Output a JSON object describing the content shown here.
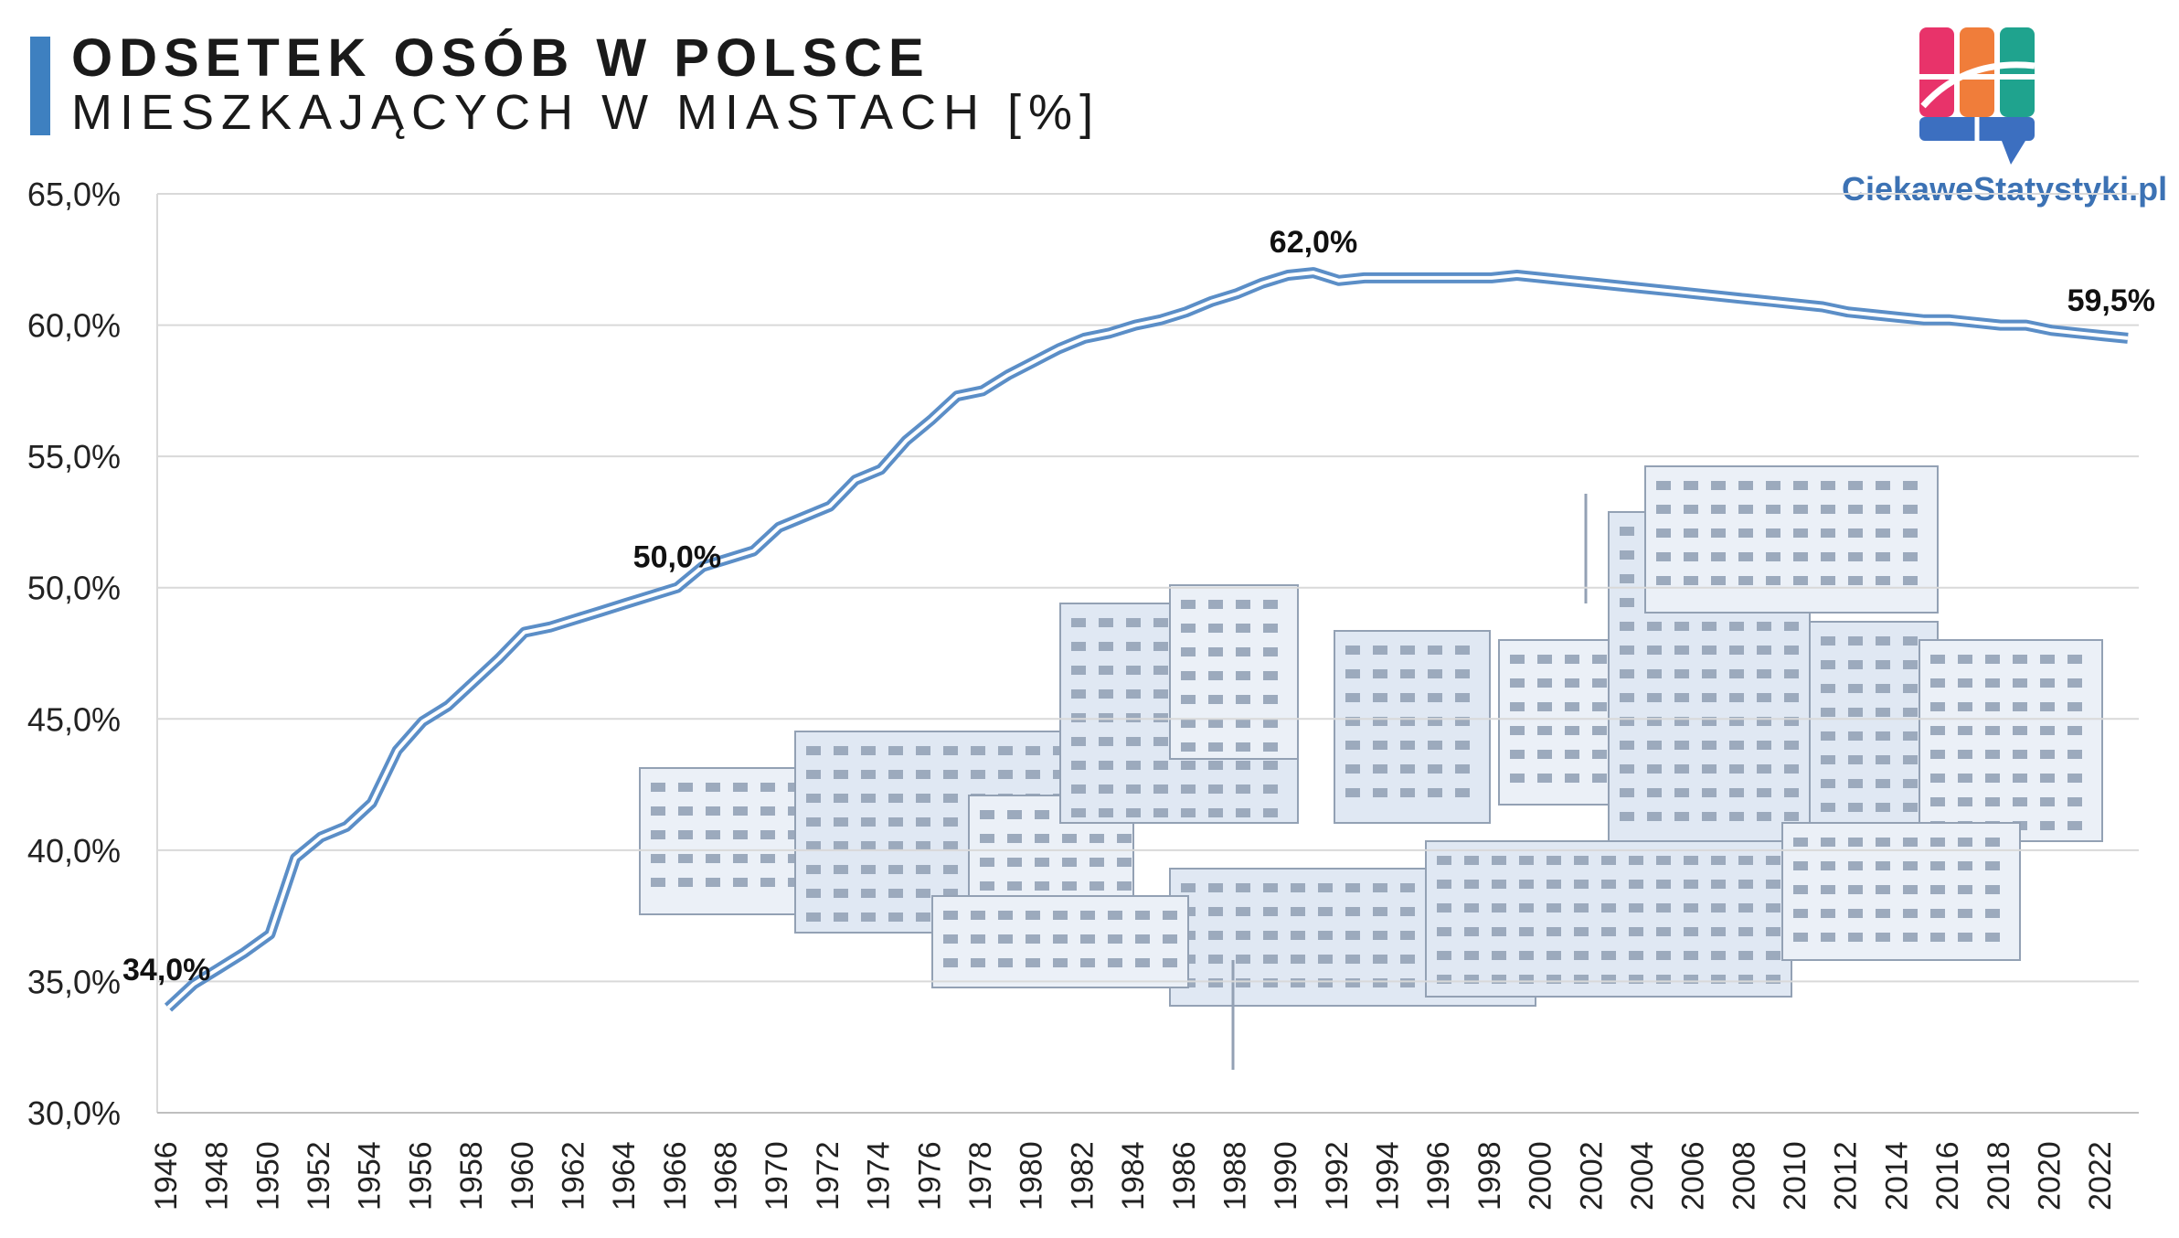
{
  "header": {
    "title_line1": "ODSETEK OSÓB W POLSCE",
    "title_line2": "MIESZKAJĄCYCH W MIASTACH [%]",
    "accent_color": "#3e80c0"
  },
  "brand": {
    "name": "CiekaweStatystyki.pl",
    "logo_colors": [
      "#e8336a",
      "#f07d3a",
      "#1fa38e",
      "#3c6fc0"
    ]
  },
  "chart_data": {
    "type": "line",
    "title": "ODSETEK OSÓB W POLSCE MIESZKAJĄCYCH W MIASTACH [%]",
    "xlabel": "",
    "ylabel": "",
    "ylim": [
      30,
      65
    ],
    "yticks": [
      30,
      35,
      40,
      45,
      50,
      55,
      60,
      65
    ],
    "ytick_labels": [
      "30,0%",
      "35,0%",
      "40,0%",
      "45,0%",
      "50,0%",
      "55,0%",
      "60,0%",
      "65,0%"
    ],
    "xlim": [
      1946,
      2023
    ],
    "xticks": [
      1946,
      1948,
      1950,
      1952,
      1954,
      1956,
      1958,
      1960,
      1962,
      1964,
      1966,
      1968,
      1970,
      1972,
      1974,
      1976,
      1978,
      1980,
      1982,
      1984,
      1986,
      1988,
      1990,
      1992,
      1994,
      1996,
      1998,
      2000,
      2002,
      2004,
      2006,
      2008,
      2010,
      2012,
      2014,
      2016,
      2018,
      2020,
      2022
    ],
    "grid": true,
    "line_color": "#5b8ec7",
    "background_illustration": "city-sketch",
    "series": [
      {
        "x": [
          1946,
          1947,
          1948,
          1949,
          1950,
          1951,
          1952,
          1953,
          1954,
          1955,
          1956,
          1957,
          1958,
          1959,
          1960,
          1961,
          1962,
          1963,
          1964,
          1965,
          1966,
          1967,
          1968,
          1969,
          1970,
          1971,
          1972,
          1973,
          1974,
          1975,
          1976,
          1977,
          1978,
          1979,
          1980,
          1981,
          1982,
          1983,
          1984,
          1985,
          1986,
          1987,
          1988,
          1989,
          1990,
          1991,
          1992,
          1993,
          1994,
          1995,
          1996,
          1997,
          1998,
          1999,
          2000,
          2001,
          2002,
          2003,
          2004,
          2005,
          2006,
          2007,
          2008,
          2009,
          2010,
          2011,
          2012,
          2013,
          2014,
          2015,
          2016,
          2017,
          2018,
          2019,
          2020,
          2021,
          2022,
          2023
        ],
        "values": [
          34.0,
          34.9,
          35.5,
          36.1,
          36.8,
          39.7,
          40.5,
          40.9,
          41.8,
          43.8,
          44.9,
          45.5,
          46.4,
          47.3,
          48.3,
          48.5,
          48.8,
          49.1,
          49.4,
          49.7,
          50.0,
          50.8,
          51.1,
          51.4,
          52.3,
          52.7,
          53.1,
          54.1,
          54.5,
          55.6,
          56.4,
          57.3,
          57.5,
          58.1,
          58.6,
          59.1,
          59.5,
          59.7,
          60.0,
          60.2,
          60.5,
          60.9,
          61.2,
          61.6,
          61.9,
          62.0,
          61.7,
          61.8,
          61.8,
          61.8,
          61.8,
          61.8,
          61.8,
          61.9,
          61.8,
          61.7,
          61.6,
          61.5,
          61.4,
          61.3,
          61.2,
          61.1,
          61.0,
          60.9,
          60.8,
          60.7,
          60.5,
          60.4,
          60.3,
          60.2,
          60.2,
          60.1,
          60.0,
          60.0,
          59.8,
          59.7,
          59.6,
          59.5
        ]
      }
    ],
    "annotations": [
      {
        "x": 1946,
        "y": 34.0,
        "text": "34,0%"
      },
      {
        "x": 1966,
        "y": 50.0,
        "text": "50,0%"
      },
      {
        "x": 1991,
        "y": 62.0,
        "text": "62,0%"
      },
      {
        "x": 2023,
        "y": 59.5,
        "text": "59,5%"
      }
    ]
  }
}
